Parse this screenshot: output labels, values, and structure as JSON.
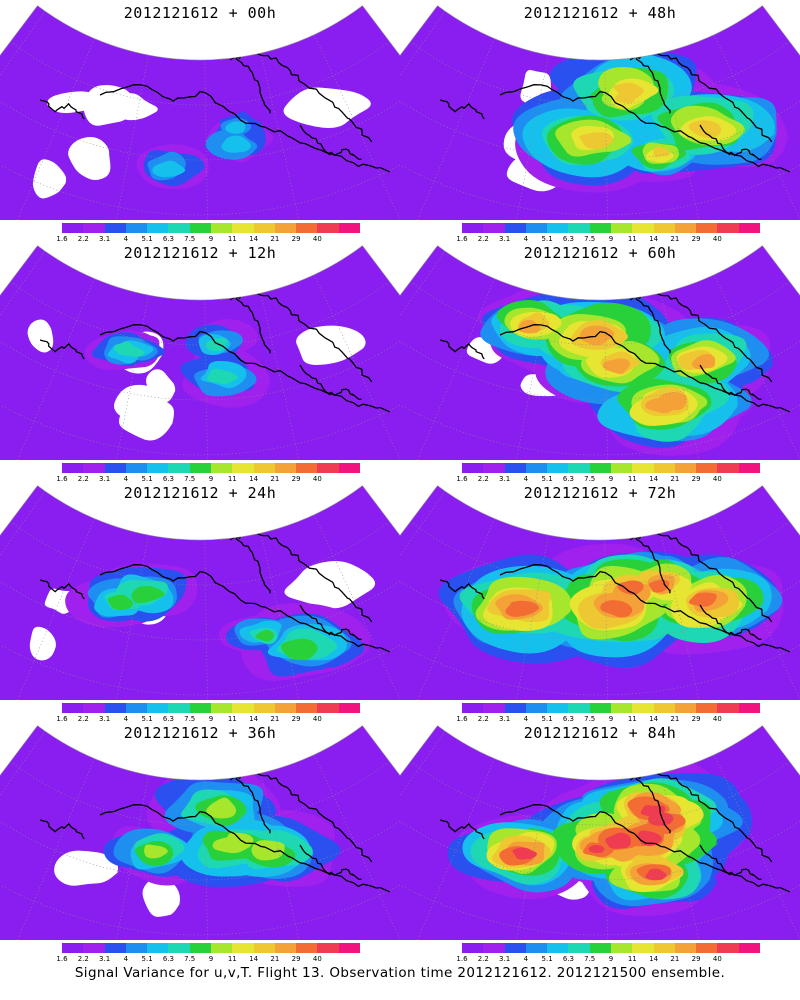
{
  "colorbar": {
    "labels": [
      "1.6",
      "2.2",
      "3.1",
      "4",
      "5.1",
      "6.3",
      "7.5",
      "9",
      "11",
      "14",
      "21",
      "29",
      "40"
    ],
    "colors": [
      "#8a1ef0",
      "#a020ee",
      "#2b50f0",
      "#1e8ef0",
      "#16c0ec",
      "#1ed8b4",
      "#28d03a",
      "#a6e62c",
      "#e6e632",
      "#eec832",
      "#f4a238",
      "#f26c34",
      "#f03c50",
      "#f0147c"
    ]
  },
  "panels": [
    {
      "title": "2012121612 + 00h",
      "intensity": 0.12
    },
    {
      "title": "2012121612 + 48h",
      "intensity": 0.55
    },
    {
      "title": "2012121612 + 12h",
      "intensity": 0.2
    },
    {
      "title": "2012121612 + 60h",
      "intensity": 0.65
    },
    {
      "title": "2012121612 + 24h",
      "intensity": 0.3
    },
    {
      "title": "2012121612 + 72h",
      "intensity": 0.78
    },
    {
      "title": "2012121612 + 36h",
      "intensity": 0.42
    },
    {
      "title": "2012121612 + 84h",
      "intensity": 0.88
    }
  ],
  "footer": "Signal Variance for u,v,T. Flight 13. Observation time 2012121612. 2012121500 ensemble."
}
